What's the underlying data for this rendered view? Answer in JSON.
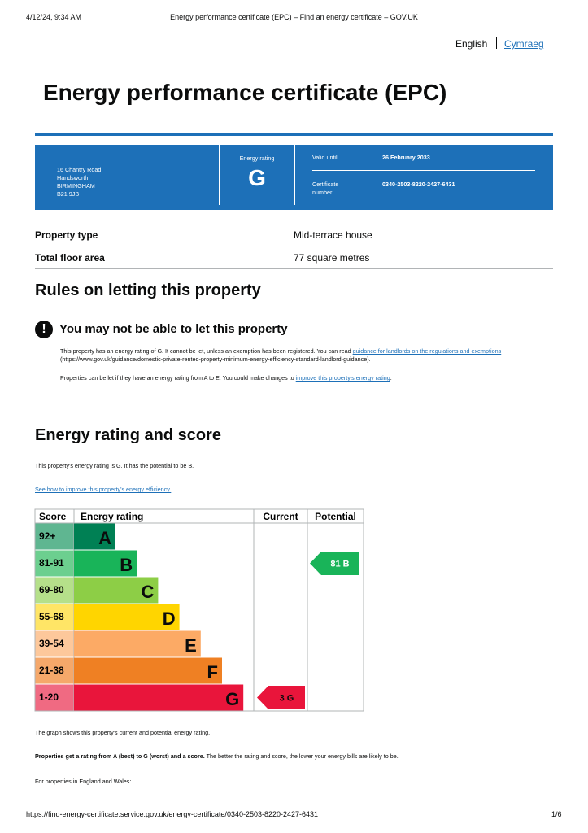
{
  "print_header": {
    "datetime": "4/12/24, 9:34 AM",
    "page_title": "Energy performance certificate (EPC) – Find an energy certificate – GOV.UK"
  },
  "language": {
    "current": "English",
    "other": "Cymraeg"
  },
  "title": "Energy performance certificate (EPC)",
  "summary": {
    "address": [
      "16 Chantry Road",
      "Handsworth",
      "BIRMINGHAM",
      "B21 9JB"
    ],
    "rating_label": "Energy rating",
    "rating": "G",
    "valid_until_label": "Valid until",
    "valid_until": "26 February 2033",
    "certificate_label": "Certificate number:",
    "certificate_number": "0340-2503-8220-2427-6431"
  },
  "property": {
    "rows": [
      [
        "Property type",
        "Mid-terrace house"
      ],
      [
        "Total floor area",
        "77 square metres"
      ]
    ]
  },
  "rules": {
    "heading": "Rules on letting this property",
    "warning": "You may not be able to let this property",
    "para1": [
      "This property has an energy rating of G. It cannot be let, unless an exemption has been registered. You can read ",
      "guidance for landlords on the regulations and exemptions",
      " (https://www.gov.uk/guidance/domestic-private-rented-property-minimum-energy-efficiency-standard-landlord-guidance)."
    ],
    "para2": [
      "Properties can be let if they have an energy rating from A to E. You could make changes to ",
      "improve this property's energy rating",
      "."
    ]
  },
  "score": {
    "heading": "Energy rating and score",
    "intro": "This property's energy rating is G. It has the potential to be B.",
    "link": "See how to improve this property's energy efficiency.",
    "table": {
      "headers": [
        "Score",
        "Energy rating",
        "Current",
        "Potential"
      ],
      "bands": [
        {
          "score": "92+",
          "letter": "A",
          "color": "#008054",
          "light": "#5fb691"
        },
        {
          "score": "81-91",
          "letter": "B",
          "color": "#19b459",
          "light": "#6ccf8f"
        },
        {
          "score": "69-80",
          "letter": "C",
          "color": "#8dce46",
          "light": "#b5e08a"
        },
        {
          "score": "55-68",
          "letter": "D",
          "color": "#ffd500",
          "light": "#ffe566"
        },
        {
          "score": "39-54",
          "letter": "E",
          "color": "#fcaa65",
          "light": "#fdc89b"
        },
        {
          "score": "21-38",
          "letter": "F",
          "color": "#ef8023",
          "light": "#f5a86a"
        },
        {
          "score": "1-20",
          "letter": "G",
          "color": "#e9153b",
          "light": "#f06a82"
        }
      ],
      "current": {
        "label": "3 G",
        "band": 6
      },
      "potential": {
        "label": "81 B",
        "band": 1
      }
    },
    "caption": "The graph shows this property's current and potential energy rating.",
    "para_bold": "Properties get a rating from A (best) to G (worst) and a score.",
    "para_rest": " The better the rating and score, the lower your energy bills are likely to be.",
    "england": "For properties in England and Wales:"
  },
  "footer": {
    "url": "https://find-energy-certificate.service.gov.uk/energy-certificate/0340-2503-8220-2427-6431",
    "page": "1/6"
  }
}
